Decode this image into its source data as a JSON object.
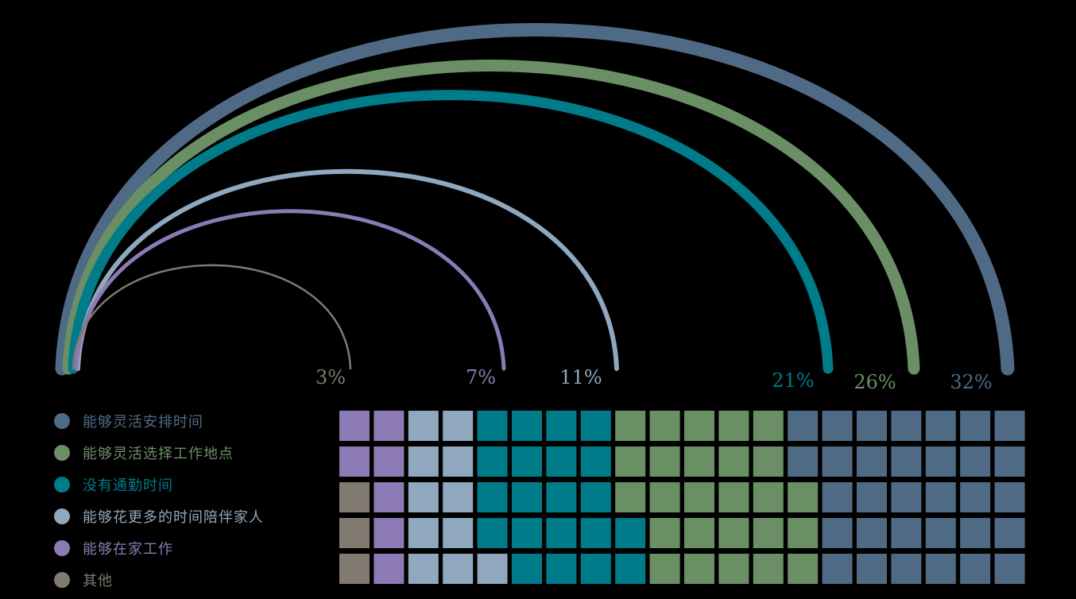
{
  "chart_data": {
    "type": "arc-waffle",
    "series": [
      {
        "name": "能够灵活安排时间",
        "value": 32,
        "value_label": "32%",
        "color": "#4f6a85"
      },
      {
        "name": "能够灵活选择工作地点",
        "value": 26,
        "value_label": "26%",
        "color": "#6a8f65"
      },
      {
        "name": "没有通勤时间",
        "value": 21,
        "value_label": "21%",
        "color": "#007b8a"
      },
      {
        "name": "能够花更多的时间陪伴家人",
        "value": 11,
        "value_label": "11%",
        "color": "#8fa8bd"
      },
      {
        "name": "能够在家工作",
        "value": 7,
        "value_label": "7%",
        "color": "#8c7ab4"
      },
      {
        "name": "其他",
        "value": 3,
        "value_label": "3%",
        "color": "#807a70"
      }
    ],
    "waffle": {
      "rows": 5,
      "columns": 20,
      "total": 100
    },
    "legend_position": "bottom-left"
  }
}
